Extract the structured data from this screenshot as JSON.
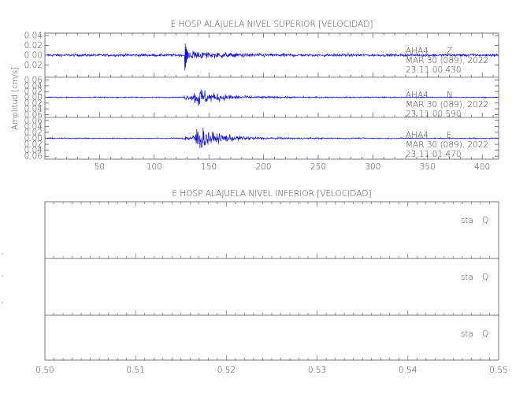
{
  "chart_data": [
    {
      "type": "line",
      "title": "E HOSP ALAJUELA NIVEL SUPERIOR [VELOCIDAD]",
      "ylabel": "Amplitud [cm/s]",
      "xlabel": "",
      "xlim": [
        0,
        415
      ],
      "xticks": [
        50,
        100,
        150,
        200,
        250,
        300,
        350,
        400
      ],
      "grid": false,
      "colors": {
        "trace": "#1010e0",
        "axes": "#555555",
        "text": "#444444"
      },
      "traces": [
        {
          "station": "AHA4",
          "component": "Z",
          "date": "MAR 30 (089), 2022",
          "time": "23:11:00.430",
          "ylim": [
            -0.045,
            0.045
          ],
          "yticks": [
            0.04,
            0.02,
            0.0,
            -0.02
          ],
          "ytick_labels": [
            "0.04",
            "0.02",
            "0.00",
            "0.02"
          ],
          "noise": 0.0018,
          "events": [
            {
              "t": 128,
              "amp": 0.044,
              "rise": 0.5,
              "decay": 1.5,
              "kind": "spike"
            },
            {
              "t": 129,
              "amp": 0.01,
              "rise": 1,
              "decay": 35,
              "kind": "coda"
            }
          ]
        },
        {
          "station": "AHA4",
          "component": "N",
          "date": "MAR 30 (089), 2022",
          "time": "23:11:00.590",
          "ylim": [
            -0.07,
            0.07
          ],
          "yticks": [
            0.06,
            0.04,
            0.02,
            0.0,
            -0.02,
            -0.04,
            -0.06
          ],
          "ytick_labels": [
            "0.06",
            "0.04",
            "0.02",
            "0.00",
            "0.02",
            "0.04",
            "0.06"
          ],
          "noise": 0.0012,
          "events": [
            {
              "t": 128,
              "amp": 0.01,
              "rise": 3,
              "decay": 15,
              "kind": "coda"
            },
            {
              "t": 140,
              "amp": 0.046,
              "rise": 6,
              "decay": 12,
              "kind": "coda"
            },
            {
              "t": 160,
              "amp": 0.006,
              "rise": 5,
              "decay": 40,
              "kind": "coda"
            }
          ]
        },
        {
          "station": "AHA4",
          "component": "E",
          "date": "MAR 30 (089), 2022",
          "time": "23:11:01.470",
          "ylim": [
            -0.07,
            0.07
          ],
          "yticks": [
            0.06,
            0.04,
            0.02,
            0.0,
            -0.02,
            -0.04,
            -0.06
          ],
          "ytick_labels": [
            "0.06",
            "0.04",
            "0.02",
            "0.00",
            "0.02",
            "0.04",
            "0.06"
          ],
          "noise": 0.0012,
          "events": [
            {
              "t": 128,
              "amp": 0.01,
              "rise": 3,
              "decay": 15,
              "kind": "coda"
            },
            {
              "t": 141,
              "amp": 0.06,
              "rise": 6,
              "decay": 12,
              "kind": "coda"
            },
            {
              "t": 162,
              "amp": 0.007,
              "rise": 5,
              "decay": 40,
              "kind": "coda"
            }
          ]
        }
      ]
    },
    {
      "type": "line",
      "title": "E HOSP ALAJUELA NIVEL INFERIOR [VELOCIDAD]",
      "xlabel": "",
      "ylabel": "",
      "xlim": [
        0.5,
        0.55
      ],
      "xticks": [
        0.5,
        0.51,
        0.52,
        0.53,
        0.54,
        0.55
      ],
      "xtick_labels": [
        "0.50",
        "0.51",
        "0.52",
        "0.53",
        "0.54",
        "0.55"
      ],
      "grid": false,
      "traces": [
        {
          "station": "sta",
          "component": "Q"
        },
        {
          "station": "sta",
          "component": "Q"
        },
        {
          "station": "sta",
          "component": "Q"
        }
      ]
    }
  ]
}
